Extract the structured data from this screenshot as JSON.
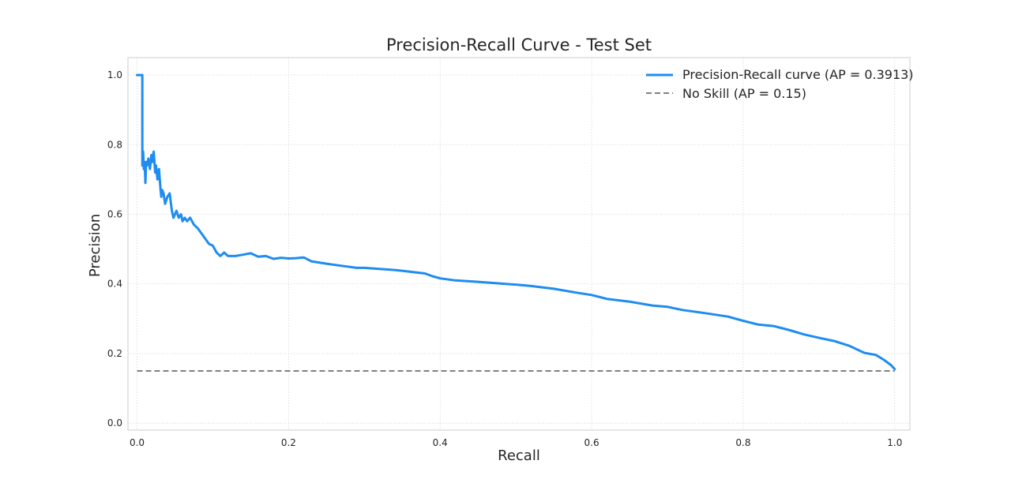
{
  "chart_data": {
    "type": "line",
    "title": "Precision-Recall Curve - Test Set",
    "xlabel": "Recall",
    "ylabel": "Precision",
    "xlim": [
      -0.012,
      1.02
    ],
    "ylim": [
      -0.02,
      1.05
    ],
    "xticks": [
      0.0,
      0.2,
      0.4,
      0.6,
      0.8,
      1.0
    ],
    "yticks": [
      0.0,
      0.2,
      0.4,
      0.6,
      0.8,
      1.0
    ],
    "xtick_labels": [
      "0.0",
      "0.2",
      "0.4",
      "0.6",
      "0.8",
      "1.0"
    ],
    "ytick_labels": [
      "0.0",
      "0.2",
      "0.4",
      "0.6",
      "0.8",
      "1.0"
    ],
    "grid": true,
    "legend_position": "top-right",
    "series": [
      {
        "name": "Precision-Recall curve (AP = 0.3913)",
        "color": "#1e8cf0",
        "style": "solid",
        "x": [
          0.0,
          0.007,
          0.007,
          0.008,
          0.009,
          0.01,
          0.011,
          0.012,
          0.013,
          0.015,
          0.017,
          0.019,
          0.02,
          0.022,
          0.024,
          0.025,
          0.027,
          0.029,
          0.031,
          0.032,
          0.033,
          0.035,
          0.037,
          0.04,
          0.043,
          0.046,
          0.048,
          0.05,
          0.052,
          0.055,
          0.058,
          0.06,
          0.063,
          0.066,
          0.07,
          0.075,
          0.08,
          0.085,
          0.09,
          0.095,
          0.1,
          0.105,
          0.11,
          0.115,
          0.12,
          0.13,
          0.14,
          0.15,
          0.16,
          0.17,
          0.18,
          0.19,
          0.2,
          0.21,
          0.22,
          0.23,
          0.25,
          0.27,
          0.29,
          0.3,
          0.32,
          0.34,
          0.36,
          0.38,
          0.39,
          0.4,
          0.42,
          0.45,
          0.48,
          0.5,
          0.52,
          0.55,
          0.58,
          0.6,
          0.62,
          0.65,
          0.68,
          0.7,
          0.72,
          0.75,
          0.78,
          0.8,
          0.82,
          0.84,
          0.86,
          0.88,
          0.9,
          0.92,
          0.94,
          0.96,
          0.975,
          0.985,
          0.995,
          1.0
        ],
        "y": [
          1.0,
          1.0,
          0.74,
          0.78,
          0.73,
          0.75,
          0.69,
          0.75,
          0.74,
          0.76,
          0.73,
          0.77,
          0.75,
          0.78,
          0.72,
          0.74,
          0.7,
          0.73,
          0.67,
          0.65,
          0.67,
          0.66,
          0.63,
          0.65,
          0.66,
          0.61,
          0.59,
          0.6,
          0.61,
          0.59,
          0.6,
          0.58,
          0.59,
          0.58,
          0.59,
          0.57,
          0.56,
          0.545,
          0.53,
          0.515,
          0.51,
          0.49,
          0.48,
          0.49,
          0.48,
          0.48,
          0.484,
          0.488,
          0.478,
          0.48,
          0.472,
          0.475,
          0.473,
          0.474,
          0.476,
          0.465,
          0.458,
          0.452,
          0.446,
          0.446,
          0.443,
          0.44,
          0.435,
          0.43,
          0.422,
          0.416,
          0.41,
          0.406,
          0.401,
          0.398,
          0.394,
          0.386,
          0.375,
          0.368,
          0.357,
          0.349,
          0.338,
          0.334,
          0.325,
          0.316,
          0.306,
          0.294,
          0.283,
          0.279,
          0.268,
          0.255,
          0.245,
          0.236,
          0.222,
          0.202,
          0.196,
          0.183,
          0.167,
          0.155
        ]
      },
      {
        "name": "No Skill (AP = 0.15)",
        "color": "#808080",
        "style": "dashed",
        "x": [
          0.0,
          1.0
        ],
        "y": [
          0.15,
          0.15
        ]
      }
    ]
  }
}
